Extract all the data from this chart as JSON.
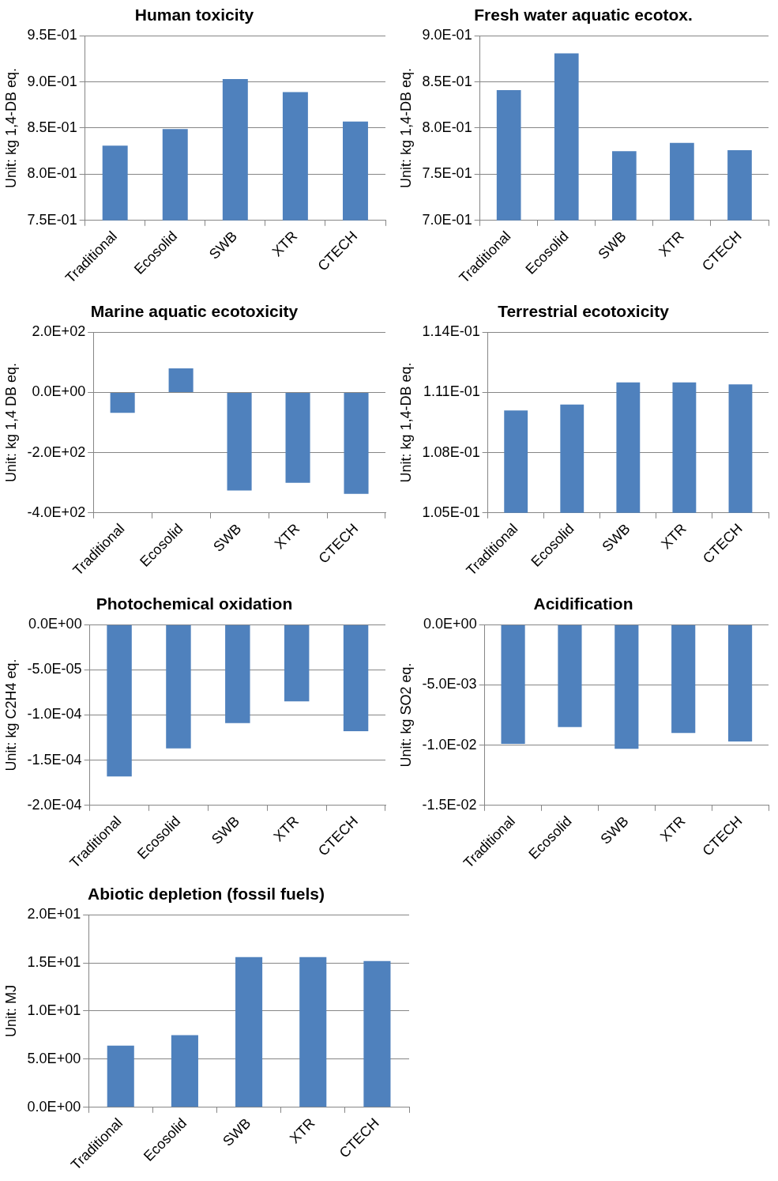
{
  "chart_data": [
    {
      "type": "bar",
      "title": "Human toxicity",
      "ylabel": "Unit: kg 1,4-DB eq.",
      "categories": [
        "Traditional",
        "Ecosolid",
        "SWB",
        "XTR",
        "CTECH"
      ],
      "values": [
        0.831,
        0.849,
        0.903,
        0.889,
        0.857
      ],
      "color": "#4f81bd",
      "ylim": [
        0.75,
        0.95
      ],
      "yticks": [
        {
          "value": 0.75,
          "label": "7.5E-01"
        },
        {
          "value": 0.8,
          "label": "8.0E-01"
        },
        {
          "value": 0.85,
          "label": "8.5E-01"
        },
        {
          "value": 0.9,
          "label": "9.0E-01"
        },
        {
          "value": 0.95,
          "label": "9.5E-01"
        }
      ],
      "grid": "y"
    },
    {
      "type": "bar",
      "title": "Fresh water aquatic ecotox.",
      "ylabel": "Unit: kg 1,4-DB eq.",
      "categories": [
        "Traditional",
        "Ecosolid",
        "SWB",
        "XTR",
        "CTECH"
      ],
      "values": [
        0.841,
        0.881,
        0.775,
        0.784,
        0.776
      ],
      "color": "#4f81bd",
      "ylim": [
        0.7,
        0.9
      ],
      "yticks": [
        {
          "value": 0.7,
          "label": "7.0E-01"
        },
        {
          "value": 0.75,
          "label": "7.5E-01"
        },
        {
          "value": 0.8,
          "label": "8.0E-01"
        },
        {
          "value": 0.85,
          "label": "8.5E-01"
        },
        {
          "value": 0.9,
          "label": "9.0E-01"
        }
      ],
      "grid": "y"
    },
    {
      "type": "bar",
      "title": "Marine aquatic ecotoxicity",
      "ylabel": "Unit: kg 1,4 DB eq.",
      "categories": [
        "Traditional",
        "Ecosolid",
        "SWB",
        "XTR",
        "CTECH"
      ],
      "values": [
        -68,
        80,
        -326,
        -300,
        -337
      ],
      "color": "#4f81bd",
      "ylim": [
        -400,
        200
      ],
      "yticks": [
        {
          "value": -400,
          "label": "-4.0E+02"
        },
        {
          "value": -200,
          "label": "-2.0E+02"
        },
        {
          "value": 0,
          "label": "0.0E+00"
        },
        {
          "value": 200,
          "label": "2.0E+02"
        }
      ],
      "grid": "y"
    },
    {
      "type": "bar",
      "title": "Terrestrial ecotoxicity",
      "ylabel": "Unit: kg 1,4-DB eq.",
      "categories": [
        "Traditional",
        "Ecosolid",
        "SWB",
        "XTR",
        "CTECH"
      ],
      "values": [
        0.1101,
        0.1104,
        0.1115,
        0.1115,
        0.1114
      ],
      "color": "#4f81bd",
      "ylim": [
        0.105,
        0.114
      ],
      "yticks": [
        {
          "value": 0.105,
          "label": "1.05E-01"
        },
        {
          "value": 0.108,
          "label": "1.08E-01"
        },
        {
          "value": 0.111,
          "label": "1.11E-01"
        },
        {
          "value": 0.114,
          "label": "1.14E-01"
        }
      ],
      "grid": "y"
    },
    {
      "type": "bar",
      "title": "Photochemical oxidation",
      "ylabel": "Unit: kg C2H4 eq.",
      "categories": [
        "Traditional",
        "Ecosolid",
        "SWB",
        "XTR",
        "CTECH"
      ],
      "values": [
        -0.000168,
        -0.000137,
        -0.000109,
        -8.5e-05,
        -0.000118
      ],
      "color": "#4f81bd",
      "ylim": [
        -0.0002,
        0
      ],
      "yticks": [
        {
          "value": -0.0002,
          "label": "-2.0E-04"
        },
        {
          "value": -0.00015,
          "label": "-1.5E-04"
        },
        {
          "value": -0.0001,
          "label": "-1.0E-04"
        },
        {
          "value": -5e-05,
          "label": "-5.0E-05"
        },
        {
          "value": 0,
          "label": "0.0E+00"
        }
      ],
      "grid": "y"
    },
    {
      "type": "bar",
      "title": "Acidification",
      "ylabel": "Unit: kg SO2 eq.",
      "categories": [
        "Traditional",
        "Ecosolid",
        "SWB",
        "XTR",
        "CTECH"
      ],
      "values": [
        -0.0099,
        -0.0085,
        -0.0103,
        -0.009,
        -0.0097
      ],
      "color": "#4f81bd",
      "ylim": [
        -0.015,
        0
      ],
      "yticks": [
        {
          "value": -0.015,
          "label": "-1.5E-02"
        },
        {
          "value": -0.01,
          "label": "-1.0E-02"
        },
        {
          "value": -0.005,
          "label": "-5.0E-03"
        },
        {
          "value": 0,
          "label": "0.0E+00"
        }
      ],
      "grid": "y"
    },
    {
      "type": "bar",
      "title": "Abiotic depletion (fossil fuels)",
      "ylabel": "Unit: MJ",
      "categories": [
        "Traditional",
        "Ecosolid",
        "SWB",
        "XTR",
        "CTECH"
      ],
      "values": [
        6.4,
        7.5,
        15.6,
        15.6,
        15.2
      ],
      "color": "#4f81bd",
      "ylim": [
        0,
        20
      ],
      "yticks": [
        {
          "value": 0,
          "label": "0.0E+00"
        },
        {
          "value": 5,
          "label": "5.0E+00"
        },
        {
          "value": 10,
          "label": "1.0E+01"
        },
        {
          "value": 15,
          "label": "1.5E+01"
        },
        {
          "value": 20,
          "label": "2.0E+01"
        }
      ],
      "grid": "y"
    }
  ]
}
